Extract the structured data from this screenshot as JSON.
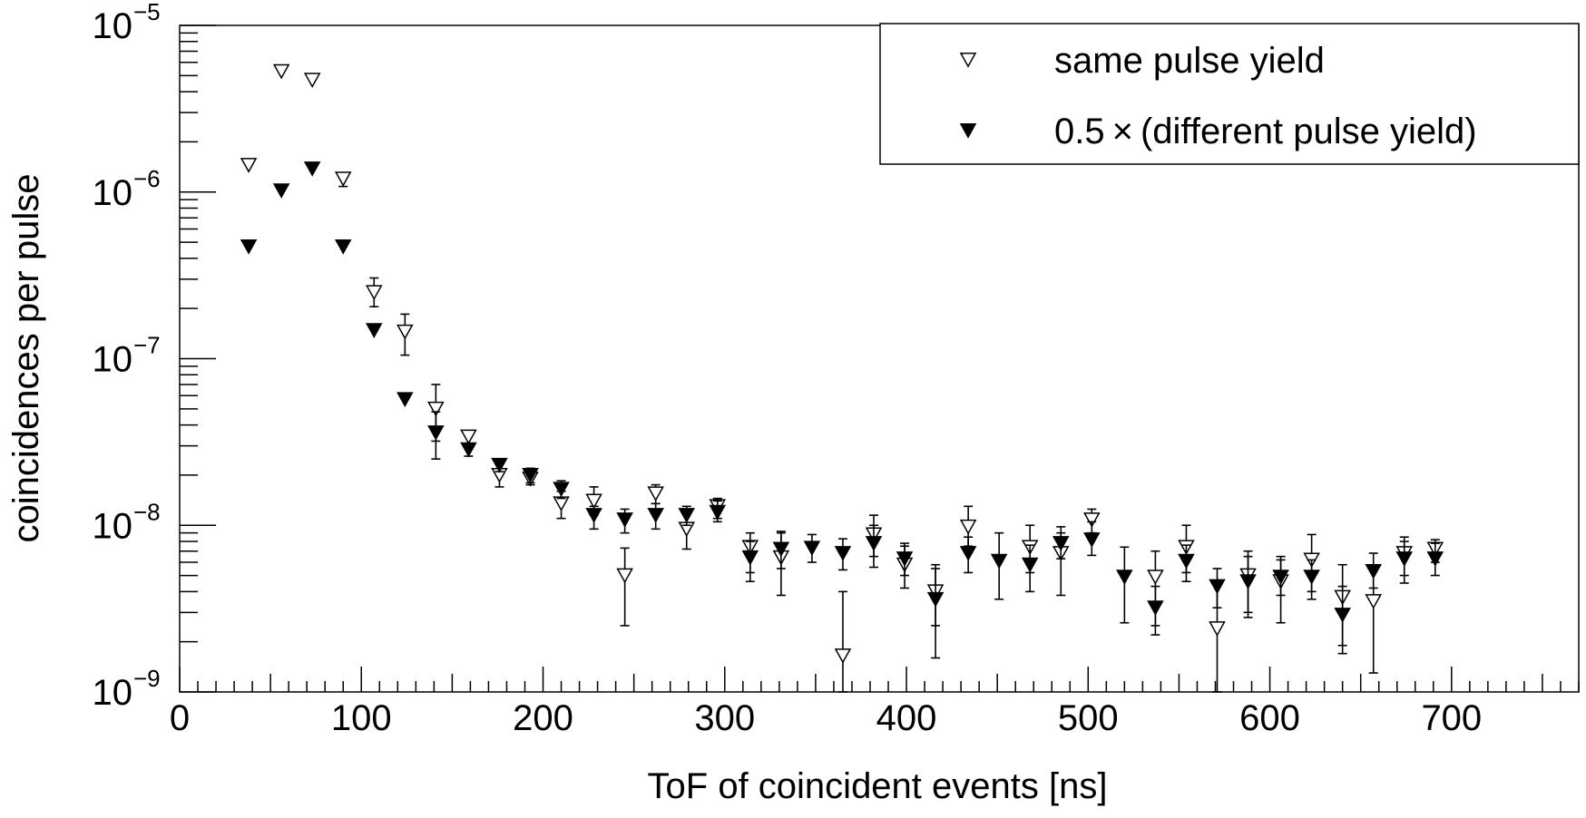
{
  "chart_data": {
    "type": "scatter",
    "xlabel": "ToF of coincident events [ns]",
    "ylabel": "coincidences per pulse",
    "xlim": [
      0,
      770
    ],
    "ylim": [
      1e-09,
      1e-05
    ],
    "yscale": "log",
    "xticks": [
      0,
      100,
      200,
      300,
      400,
      500,
      600,
      700
    ],
    "xtick_labels": [
      "0",
      "100",
      "200",
      "300",
      "400",
      "500",
      "600",
      "700"
    ],
    "yticks": [
      {
        "value": 1e-09,
        "base": "10",
        "exp": "−9"
      },
      {
        "value": 1e-08,
        "base": "10",
        "exp": "−8"
      },
      {
        "value": 1e-07,
        "base": "10",
        "exp": "−7"
      },
      {
        "value": 1e-06,
        "base": "10",
        "exp": "−6"
      },
      {
        "value": 1e-05,
        "base": "10",
        "exp": "−5"
      }
    ],
    "grid": false,
    "legend_position": "top-right",
    "series": [
      {
        "name": "same pulse yield",
        "marker": "open-triangle-down",
        "color": "#000000",
        "points": [
          {
            "x": 38,
            "y": 1.45e-06
          },
          {
            "x": 56,
            "y": 5.3e-06
          },
          {
            "x": 73,
            "y": 4.7e-06
          },
          {
            "x": 90,
            "y": 1.2e-06,
            "lo": 1.08e-06,
            "hi": 1.3e-06
          },
          {
            "x": 107,
            "y": 2.5e-07,
            "lo": 2.05e-07,
            "hi": 3.05e-07
          },
          {
            "x": 124,
            "y": 1.45e-07,
            "lo": 1.05e-07,
            "hi": 1.85e-07
          },
          {
            "x": 141,
            "y": 5e-08,
            "lo": 3.2e-08,
            "hi": 7e-08
          },
          {
            "x": 159,
            "y": 3.4e-08,
            "lo": 3e-08,
            "hi": 3.7e-08
          },
          {
            "x": 176,
            "y": 2e-08,
            "lo": 1.7e-08,
            "hi": 2.35e-08
          },
          {
            "x": 193,
            "y": 1.9e-08,
            "lo": 1.75e-08,
            "hi": 2.1e-08
          },
          {
            "x": 210,
            "y": 1.35e-08,
            "lo": 1.1e-08,
            "hi": 1.6e-08
          },
          {
            "x": 228,
            "y": 1.4e-08,
            "lo": 1.15e-08,
            "hi": 1.7e-08
          },
          {
            "x": 245,
            "y": 5e-09,
            "lo": 2.5e-09,
            "hi": 7.3e-09
          },
          {
            "x": 262,
            "y": 1.55e-08,
            "lo": 1.35e-08,
            "hi": 1.75e-08
          },
          {
            "x": 279,
            "y": 9.5e-09,
            "lo": 7.2e-09,
            "hi": 1.2e-08
          },
          {
            "x": 296,
            "y": 1.3e-08,
            "lo": 1.1e-08,
            "hi": 1.45e-08
          },
          {
            "x": 314,
            "y": 7.4e-09,
            "lo": 5.2e-09,
            "hi": 9e-09
          },
          {
            "x": 331,
            "y": 6.4e-09,
            "lo": 3.8e-09,
            "hi": 9e-09
          },
          {
            "x": 365,
            "y": 1.65e-09,
            "lo": 1e-09,
            "hi": 4e-09
          },
          {
            "x": 382,
            "y": 8.8e-09,
            "lo": 6.5e-09,
            "hi": 1.15e-08
          },
          {
            "x": 399,
            "y": 5.8e-09,
            "lo": 4.2e-09,
            "hi": 7.5e-09
          },
          {
            "x": 416,
            "y": 4e-09,
            "lo": 2.5e-09,
            "hi": 5.5e-09
          },
          {
            "x": 434,
            "y": 9.8e-09,
            "lo": 7.5e-09,
            "hi": 1.3e-08
          },
          {
            "x": 468,
            "y": 7.4e-09,
            "lo": 5.2e-09,
            "hi": 1e-08
          },
          {
            "x": 485,
            "y": 6.8e-09,
            "lo": 3.8e-09,
            "hi": 9e-09
          },
          {
            "x": 502,
            "y": 1.08e-08,
            "lo": 9e-09,
            "hi": 1.25e-08
          },
          {
            "x": 537,
            "y": 4.9e-09,
            "lo": 2.5e-09,
            "hi": 7e-09
          },
          {
            "x": 554,
            "y": 7.4e-09,
            "lo": 5.2e-09,
            "hi": 1e-08
          },
          {
            "x": 571,
            "y": 2.4e-09,
            "lo": 1e-09,
            "hi": 4.5e-09
          },
          {
            "x": 588,
            "y": 5e-09,
            "lo": 3e-09,
            "hi": 7e-09
          },
          {
            "x": 606,
            "y": 4.6e-09,
            "lo": 2.6e-09,
            "hi": 6.5e-09
          },
          {
            "x": 623,
            "y": 6.2e-09,
            "lo": 4e-09,
            "hi": 8.8e-09
          },
          {
            "x": 640,
            "y": 3.7e-09,
            "lo": 1.9e-09,
            "hi": 5.8e-09
          },
          {
            "x": 657,
            "y": 3.5e-09,
            "lo": 1.3e-09,
            "hi": 5.5e-09
          },
          {
            "x": 674,
            "y": 6.8e-09,
            "lo": 5e-09,
            "hi": 8.5e-09
          },
          {
            "x": 691,
            "y": 7.2e-09,
            "lo": 6e-09,
            "hi": 8.2e-09
          }
        ]
      },
      {
        "name": "0.5 × (different pulse yield)",
        "marker": "filled-triangle-down",
        "color": "#000000",
        "points": [
          {
            "x": 38,
            "y": 4.7e-07
          },
          {
            "x": 56,
            "y": 1.02e-06
          },
          {
            "x": 73,
            "y": 1.38e-06
          },
          {
            "x": 90,
            "y": 4.7e-07
          },
          {
            "x": 107,
            "y": 1.48e-07
          },
          {
            "x": 124,
            "y": 5.7e-08
          },
          {
            "x": 141,
            "y": 3.6e-08,
            "lo": 2.5e-08,
            "hi": 4.8e-08
          },
          {
            "x": 159,
            "y": 2.85e-08,
            "lo": 2.6e-08,
            "hi": 3.1e-08
          },
          {
            "x": 176,
            "y": 2.3e-08,
            "lo": 2.1e-08,
            "hi": 2.5e-08
          },
          {
            "x": 193,
            "y": 2e-08,
            "lo": 1.8e-08,
            "hi": 2.2e-08
          },
          {
            "x": 210,
            "y": 1.65e-08,
            "lo": 1.45e-08,
            "hi": 1.85e-08
          },
          {
            "x": 228,
            "y": 1.15e-08,
            "lo": 9.5e-09,
            "hi": 1.3e-08
          },
          {
            "x": 245,
            "y": 1.08e-08,
            "lo": 9e-09,
            "hi": 1.25e-08
          },
          {
            "x": 262,
            "y": 1.15e-08,
            "lo": 9.5e-09,
            "hi": 1.35e-08
          },
          {
            "x": 279,
            "y": 1.15e-08,
            "lo": 1e-08,
            "hi": 1.3e-08
          },
          {
            "x": 296,
            "y": 1.2e-08,
            "lo": 1.05e-08,
            "hi": 1.4e-08
          },
          {
            "x": 314,
            "y": 6.4e-09,
            "lo": 4.6e-09,
            "hi": 8e-09
          },
          {
            "x": 331,
            "y": 7.2e-09,
            "lo": 5.5e-09,
            "hi": 9.2e-09
          },
          {
            "x": 348,
            "y": 7.3e-09,
            "lo": 6e-09,
            "hi": 8.8e-09
          },
          {
            "x": 365,
            "y": 6.8e-09,
            "lo": 5.4e-09,
            "hi": 8.3e-09
          },
          {
            "x": 382,
            "y": 7.8e-09,
            "lo": 5.6e-09,
            "hi": 1e-08
          },
          {
            "x": 399,
            "y": 6.3e-09,
            "lo": 5e-09,
            "hi": 7.8e-09
          },
          {
            "x": 416,
            "y": 3.6e-09,
            "lo": 1.6e-09,
            "hi": 5.8e-09
          },
          {
            "x": 434,
            "y": 6.8e-09,
            "lo": 5.2e-09,
            "hi": 8.5e-09
          },
          {
            "x": 451,
            "y": 6.1e-09,
            "lo": 3.6e-09,
            "hi": 9e-09
          },
          {
            "x": 468,
            "y": 5.8e-09,
            "lo": 4e-09,
            "hi": 7.6e-09
          },
          {
            "x": 485,
            "y": 7.8e-09,
            "lo": 6.3e-09,
            "hi": 9.8e-09
          },
          {
            "x": 502,
            "y": 8.2e-09,
            "lo": 6.6e-09,
            "hi": 1.05e-08
          },
          {
            "x": 520,
            "y": 4.9e-09,
            "lo": 2.6e-09,
            "hi": 7.4e-09
          },
          {
            "x": 537,
            "y": 3.2e-09,
            "lo": 2.2e-09,
            "hi": 4.3e-09
          },
          {
            "x": 554,
            "y": 6.1e-09,
            "lo": 4.6e-09,
            "hi": 7.6e-09
          },
          {
            "x": 571,
            "y": 4.3e-09,
            "lo": 3.2e-09,
            "hi": 5.5e-09
          },
          {
            "x": 588,
            "y": 4.6e-09,
            "lo": 2.8e-09,
            "hi": 6.5e-09
          },
          {
            "x": 606,
            "y": 4.9e-09,
            "lo": 3.8e-09,
            "hi": 6.2e-09
          },
          {
            "x": 623,
            "y": 4.9e-09,
            "lo": 3.6e-09,
            "hi": 6.2e-09
          },
          {
            "x": 640,
            "y": 2.9e-09,
            "lo": 1.7e-09,
            "hi": 4.3e-09
          },
          {
            "x": 657,
            "y": 5.3e-09,
            "lo": 4.2e-09,
            "hi": 6.8e-09
          },
          {
            "x": 674,
            "y": 6.3e-09,
            "lo": 4.5e-09,
            "hi": 8e-09
          },
          {
            "x": 691,
            "y": 6.3e-09,
            "lo": 5e-09,
            "hi": 7.8e-09
          }
        ]
      }
    ]
  }
}
